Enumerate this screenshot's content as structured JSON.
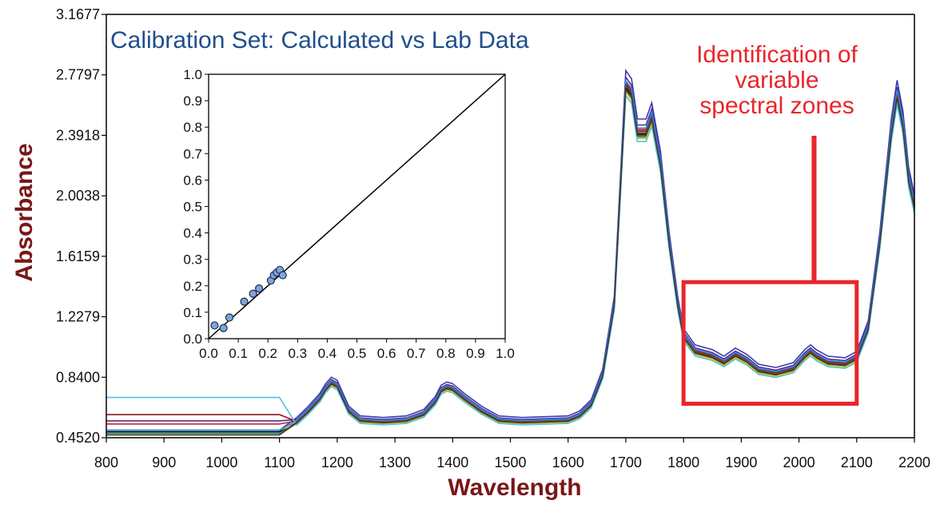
{
  "colors": {
    "axis_title": "#7a1616",
    "main_title": "#1f4e8c",
    "annotation": "#e8262a",
    "axis": "#000000",
    "inset_points": "#7fa6d9"
  },
  "chart_data": [
    {
      "type": "line",
      "title": "",
      "xlabel": "Wavelength",
      "ylabel": "Absorbance",
      "xlim": [
        800,
        2200
      ],
      "ylim": [
        0.452,
        3.1677
      ],
      "x_ticks": [
        "800",
        "900",
        "1000",
        "1100",
        "1200",
        "1300",
        "1400",
        "1500",
        "1600",
        "1700",
        "1800",
        "1900",
        "2000",
        "2100",
        "2200"
      ],
      "y_ticks": [
        "0.4520",
        "0.8400",
        "1.2279",
        "1.6159",
        "2.0038",
        "2.3918",
        "2.7797",
        "3.1677"
      ],
      "grid": false,
      "base_spectrum": {
        "x": [
          800,
          900,
          1000,
          1100,
          1130,
          1150,
          1170,
          1180,
          1190,
          1200,
          1210,
          1220,
          1240,
          1280,
          1320,
          1350,
          1370,
          1380,
          1390,
          1400,
          1420,
          1450,
          1480,
          1520,
          1600,
          1620,
          1640,
          1660,
          1680,
          1690,
          1700,
          1710,
          1720,
          1735,
          1745,
          1760,
          1775,
          1790,
          1800,
          1820,
          1850,
          1870,
          1890,
          1910,
          1930,
          1960,
          1990,
          2010,
          2020,
          2030,
          2050,
          2080,
          2100,
          2120,
          2140,
          2160,
          2170,
          2180,
          2190,
          2200
        ],
        "y": [
          0.5,
          0.51,
          0.5,
          0.5,
          0.55,
          0.62,
          0.7,
          0.76,
          0.8,
          0.78,
          0.7,
          0.62,
          0.56,
          0.55,
          0.56,
          0.6,
          0.68,
          0.75,
          0.77,
          0.76,
          0.7,
          0.62,
          0.56,
          0.55,
          0.56,
          0.59,
          0.66,
          0.85,
          1.3,
          2.0,
          2.7,
          2.65,
          2.4,
          2.4,
          2.5,
          2.2,
          1.7,
          1.3,
          1.1,
          1.0,
          0.97,
          0.93,
          0.98,
          0.94,
          0.88,
          0.86,
          0.89,
          0.97,
          1.0,
          0.97,
          0.93,
          0.92,
          0.96,
          1.15,
          1.7,
          2.4,
          2.64,
          2.45,
          2.1,
          1.93
        ]
      },
      "series": [
        {
          "color": "#000000",
          "offset": 0.0,
          "pre1100": 0.49
        },
        {
          "color": "#5b2a86",
          "offset": 0.06,
          "pre1100": 0.56
        },
        {
          "color": "#3a3ab0",
          "offset": 0.1,
          "pre1100": 0.5
        },
        {
          "color": "#c0282d",
          "offset": 0.03,
          "pre1100": 0.54
        },
        {
          "color": "#8b1a1a",
          "offset": 0.02,
          "pre1100": 0.6
        },
        {
          "color": "#2e8b57",
          "offset": -0.02,
          "pre1100": 0.48
        },
        {
          "color": "#e5c300",
          "offset": -0.03,
          "pre1100": 0.5
        },
        {
          "color": "#1e90ff",
          "offset": 0.04,
          "pre1100": 0.5
        },
        {
          "color": "#4fc3e0",
          "offset": -0.05,
          "pre1100": 0.71
        },
        {
          "color": "#7a4a2a",
          "offset": 0.01,
          "pre1100": 0.47
        },
        {
          "color": "#3c3c3c",
          "offset": -0.01,
          "pre1100": 0.47
        }
      ]
    },
    {
      "type": "scatter",
      "title": "Calibration Set: Calculated vs Lab Data",
      "xlim": [
        0.0,
        1.0
      ],
      "ylim": [
        0.0,
        1.0
      ],
      "x_ticks": [
        "0.0",
        "0.1",
        "0.2",
        "0.3",
        "0.4",
        "0.5",
        "0.6",
        "0.7",
        "0.8",
        "0.9",
        "1.0"
      ],
      "y_ticks": [
        "0.0",
        "0.1",
        "0.2",
        "0.3",
        "0.4",
        "0.5",
        "0.6",
        "0.7",
        "0.8",
        "0.9",
        "1.0"
      ],
      "reference_line": [
        [
          0,
          0
        ],
        [
          1,
          1
        ]
      ],
      "points": [
        {
          "x": 0.02,
          "y": 0.05
        },
        {
          "x": 0.05,
          "y": 0.04
        },
        {
          "x": 0.07,
          "y": 0.08
        },
        {
          "x": 0.12,
          "y": 0.14
        },
        {
          "x": 0.15,
          "y": 0.17
        },
        {
          "x": 0.17,
          "y": 0.19
        },
        {
          "x": 0.21,
          "y": 0.22
        },
        {
          "x": 0.22,
          "y": 0.24
        },
        {
          "x": 0.23,
          "y": 0.25
        },
        {
          "x": 0.24,
          "y": 0.26
        },
        {
          "x": 0.25,
          "y": 0.24
        }
      ]
    }
  ],
  "annotation": {
    "lines": [
      "Identification of",
      "variable",
      "spectral zones"
    ],
    "region": {
      "x_start": 1800,
      "x_end": 2100,
      "y_low": 0.67,
      "y_high": 1.45
    }
  }
}
